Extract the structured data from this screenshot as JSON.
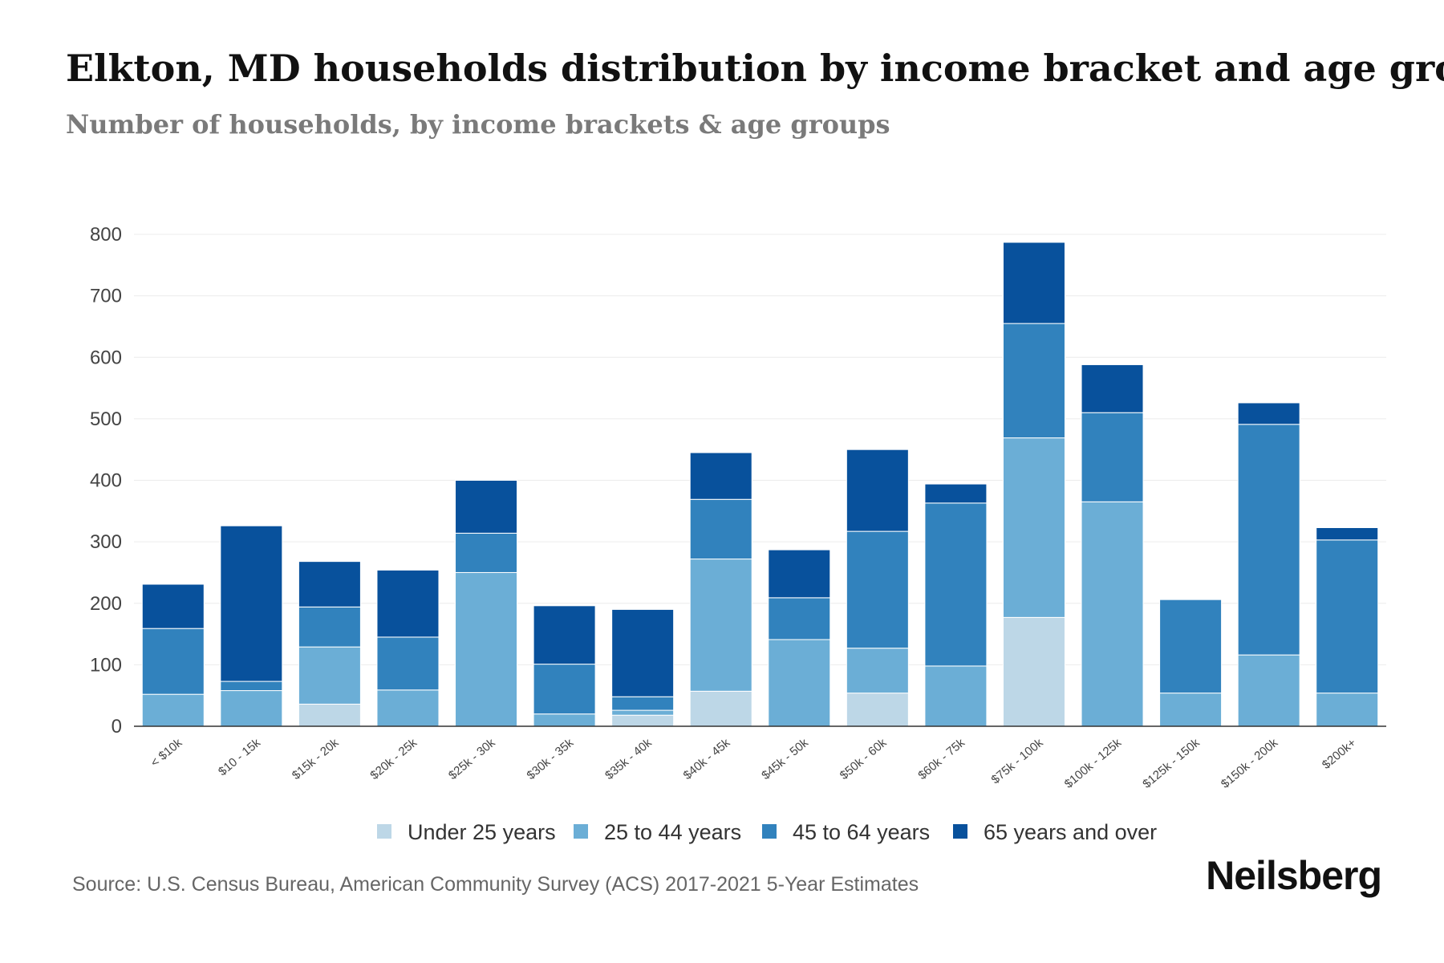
{
  "chart_data": {
    "type": "bar",
    "stacked": true,
    "title": "Elkton, MD households distribution by income bracket and age group",
    "subtitle": "Number of households, by income brackets & age groups",
    "xlabel": "",
    "ylabel": "",
    "ylim": [
      0,
      800
    ],
    "yticks": [
      0,
      100,
      200,
      300,
      400,
      500,
      600,
      700,
      800
    ],
    "grid": true,
    "legend_position": "bottom-center",
    "categories": [
      "< $10k",
      "$10 - 15k",
      "$15k - 20k",
      "$20k - 25k",
      "$25k - 30k",
      "$30k - 35k",
      "$35k - 40k",
      "$40k - 45k",
      "$45k - 50k",
      "$50k - 60k",
      "$60k - 75k",
      "$75k - 100k",
      "$100k - 125k",
      "$125k - 150k",
      "$150k - 200k",
      "$200k+"
    ],
    "series": [
      {
        "name": "Under 25 years",
        "color": "#bdd7e7",
        "values": [
          0,
          0,
          36,
          0,
          0,
          0,
          18,
          57,
          0,
          54,
          0,
          177,
          0,
          0,
          0,
          0
        ]
      },
      {
        "name": "25 to 44 years",
        "color": "#6baed6",
        "values": [
          52,
          58,
          93,
          59,
          250,
          20,
          8,
          215,
          141,
          73,
          98,
          292,
          365,
          54,
          116,
          54
        ]
      },
      {
        "name": "45 to 64 years",
        "color": "#3182bd",
        "values": [
          107,
          15,
          65,
          86,
          64,
          81,
          22,
          97,
          68,
          190,
          265,
          186,
          145,
          152,
          375,
          249
        ]
      },
      {
        "name": "65 years and over",
        "color": "#08519c",
        "values": [
          72,
          253,
          74,
          109,
          86,
          95,
          142,
          76,
          78,
          133,
          31,
          132,
          78,
          0,
          35,
          20
        ]
      }
    ]
  },
  "footer": {
    "source": "Source: U.S. Census Bureau, American Community Survey (ACS) 2017-2021 5-Year Estimates",
    "brand": "Neilsberg"
  }
}
